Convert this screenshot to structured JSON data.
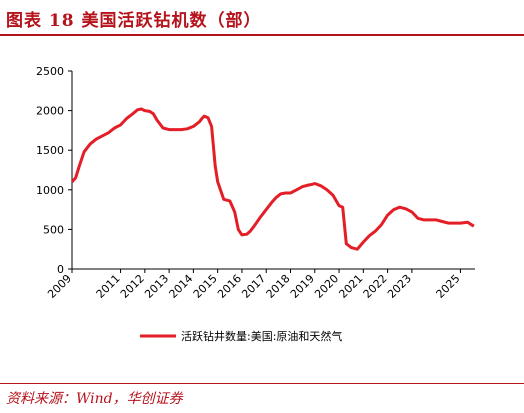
{
  "header": {
    "title": "图表 18  美国活跃钻机数（部）"
  },
  "source": {
    "text": "资料来源：Wind，华创证券"
  },
  "colors": {
    "accent": "#b5121b",
    "series": "#e41e26"
  },
  "chart_data": {
    "type": "line",
    "title": "美国活跃钻机数（部）",
    "xlabel": "",
    "ylabel": "",
    "xlim": [
      2009,
      2025.6
    ],
    "ylim": [
      0,
      2500
    ],
    "yticks": [
      0,
      500,
      1000,
      1500,
      2000,
      2500
    ],
    "xticks": [
      2009,
      2011,
      2012,
      2013,
      2014,
      2015,
      2016,
      2017,
      2018,
      2019,
      2020,
      2021,
      2022,
      2023,
      2025
    ],
    "grid": false,
    "legend": "bottom",
    "series": [
      {
        "name": "活跃钻井数量:美国:原油和天然气",
        "x": [
          2009.0,
          2009.15,
          2009.3,
          2009.5,
          2009.75,
          2010.0,
          2010.25,
          2010.5,
          2010.75,
          2011.0,
          2011.25,
          2011.5,
          2011.7,
          2011.85,
          2012.0,
          2012.2,
          2012.35,
          2012.5,
          2012.75,
          2013.0,
          2013.25,
          2013.5,
          2013.75,
          2014.0,
          2014.25,
          2014.35,
          2014.45,
          2014.6,
          2014.75,
          2014.9,
          2015.0,
          2015.25,
          2015.5,
          2015.7,
          2015.85,
          2016.0,
          2016.2,
          2016.35,
          2016.5,
          2016.75,
          2017.0,
          2017.25,
          2017.4,
          2017.6,
          2017.8,
          2018.0,
          2018.25,
          2018.5,
          2018.75,
          2018.9,
          2019.0,
          2019.25,
          2019.5,
          2019.75,
          2020.0,
          2020.15,
          2020.3,
          2020.5,
          2020.75,
          2021.0,
          2021.25,
          2021.5,
          2021.75,
          2022.0,
          2022.25,
          2022.5,
          2022.75,
          2023.0,
          2023.25,
          2023.5,
          2023.75,
          2024.0,
          2024.25,
          2024.5,
          2024.75,
          2025.0,
          2025.3,
          2025.55
        ],
        "values": [
          1100,
          1150,
          1300,
          1480,
          1580,
          1640,
          1680,
          1720,
          1780,
          1820,
          1900,
          1960,
          2010,
          2020,
          2000,
          1990,
          1960,
          1880,
          1780,
          1760,
          1760,
          1760,
          1770,
          1800,
          1860,
          1900,
          1930,
          1910,
          1800,
          1300,
          1100,
          880,
          860,
          720,
          500,
          430,
          440,
          480,
          540,
          650,
          750,
          850,
          900,
          950,
          960,
          960,
          1000,
          1040,
          1060,
          1070,
          1080,
          1050,
          1000,
          930,
          800,
          780,
          320,
          270,
          250,
          340,
          420,
          480,
          560,
          680,
          750,
          780,
          760,
          720,
          640,
          620,
          620,
          620,
          600,
          580,
          580,
          580,
          590,
          540
        ]
      }
    ]
  }
}
